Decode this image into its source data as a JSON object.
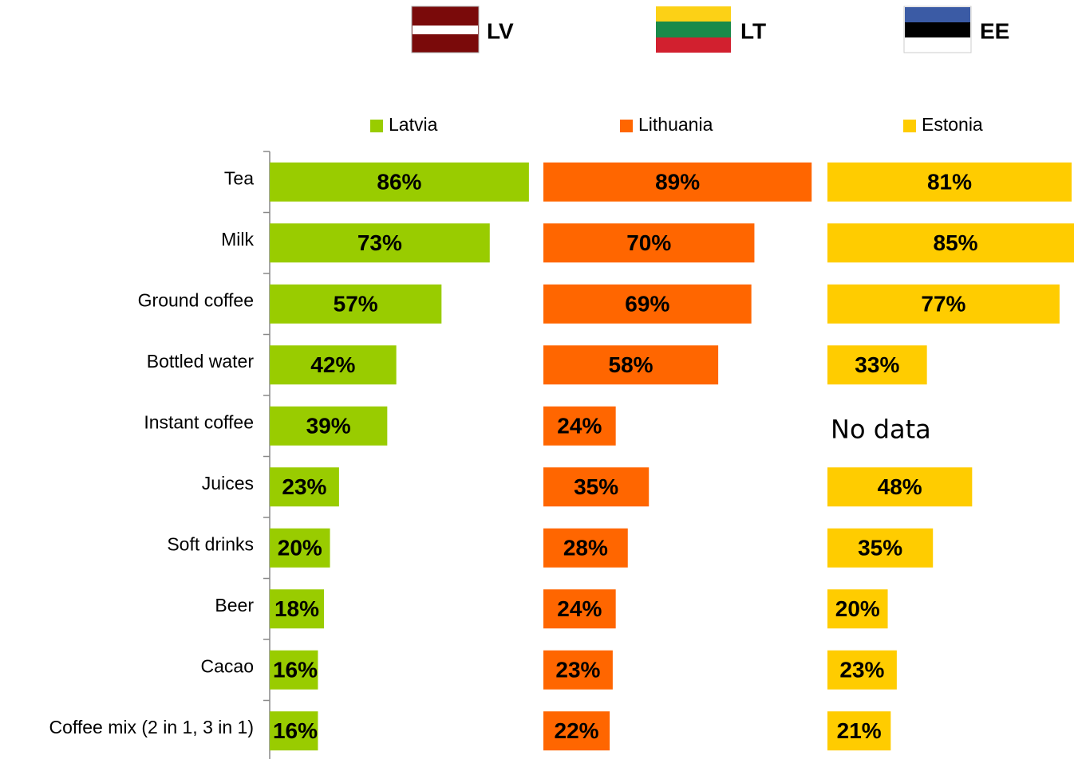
{
  "chart_data": {
    "type": "bar",
    "flag_labels": [
      "LV",
      "LT",
      "EE"
    ],
    "categories": [
      "Tea",
      "Milk",
      "Ground coffee",
      "Bottled water",
      "Instant coffee",
      "Juices",
      "Soft drinks",
      "Beer",
      "Cacao",
      "Coffee mix (2 in 1, 3 in 1)"
    ],
    "series": [
      {
        "name": "Latvia",
        "color": "#99cc00",
        "values": [
          86,
          73,
          57,
          42,
          39,
          23,
          20,
          18,
          16,
          16
        ],
        "value_labels": [
          "86%",
          "73%",
          "57%",
          "42%",
          "39%",
          "23%",
          "20%",
          "18%",
          "16%",
          "16%"
        ]
      },
      {
        "name": "Lithuania",
        "color": "#ff6600",
        "values": [
          89,
          70,
          69,
          58,
          24,
          35,
          28,
          24,
          23,
          22
        ],
        "value_labels": [
          "89%",
          "70%",
          "69%",
          "58%",
          "24%",
          "35%",
          "28%",
          "24%",
          "23%",
          "22%"
        ]
      },
      {
        "name": "Estonia",
        "color": "#ffcc00",
        "values": [
          81,
          85,
          77,
          33,
          null,
          48,
          35,
          20,
          23,
          21
        ],
        "value_labels": [
          "81%",
          "85%",
          "77%",
          "33%",
          null,
          "48%",
          "35%",
          "20%",
          "23%",
          "21%"
        ]
      }
    ],
    "missing_label": "No data",
    "xlim": [
      0,
      90
    ]
  }
}
